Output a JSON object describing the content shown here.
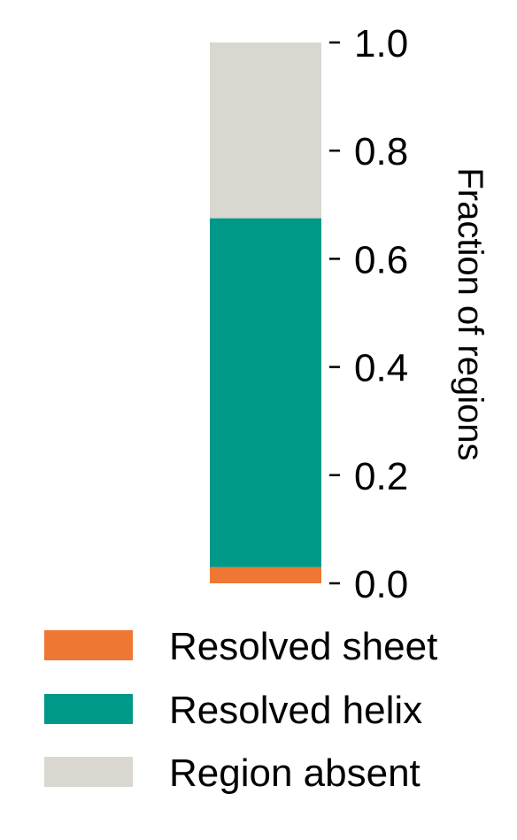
{
  "chart_data": {
    "type": "bar",
    "stacked": true,
    "categories": [
      ""
    ],
    "series": [
      {
        "name": "Resolved sheet",
        "values": [
          0.03
        ],
        "color": "#EE7733"
      },
      {
        "name": "Resolved helix",
        "values": [
          0.645
        ],
        "color": "#009988"
      },
      {
        "name": "Region absent",
        "values": [
          0.325
        ],
        "color": "#D9D7D0"
      }
    ],
    "ylabel": "Fraction of regions",
    "ylim": [
      0,
      1
    ],
    "yticks": [
      "0.0",
      "0.2",
      "0.4",
      "0.6",
      "0.8",
      "1.0"
    ],
    "y_axis_side": "right",
    "grid": false,
    "legend_position": "bottom"
  }
}
